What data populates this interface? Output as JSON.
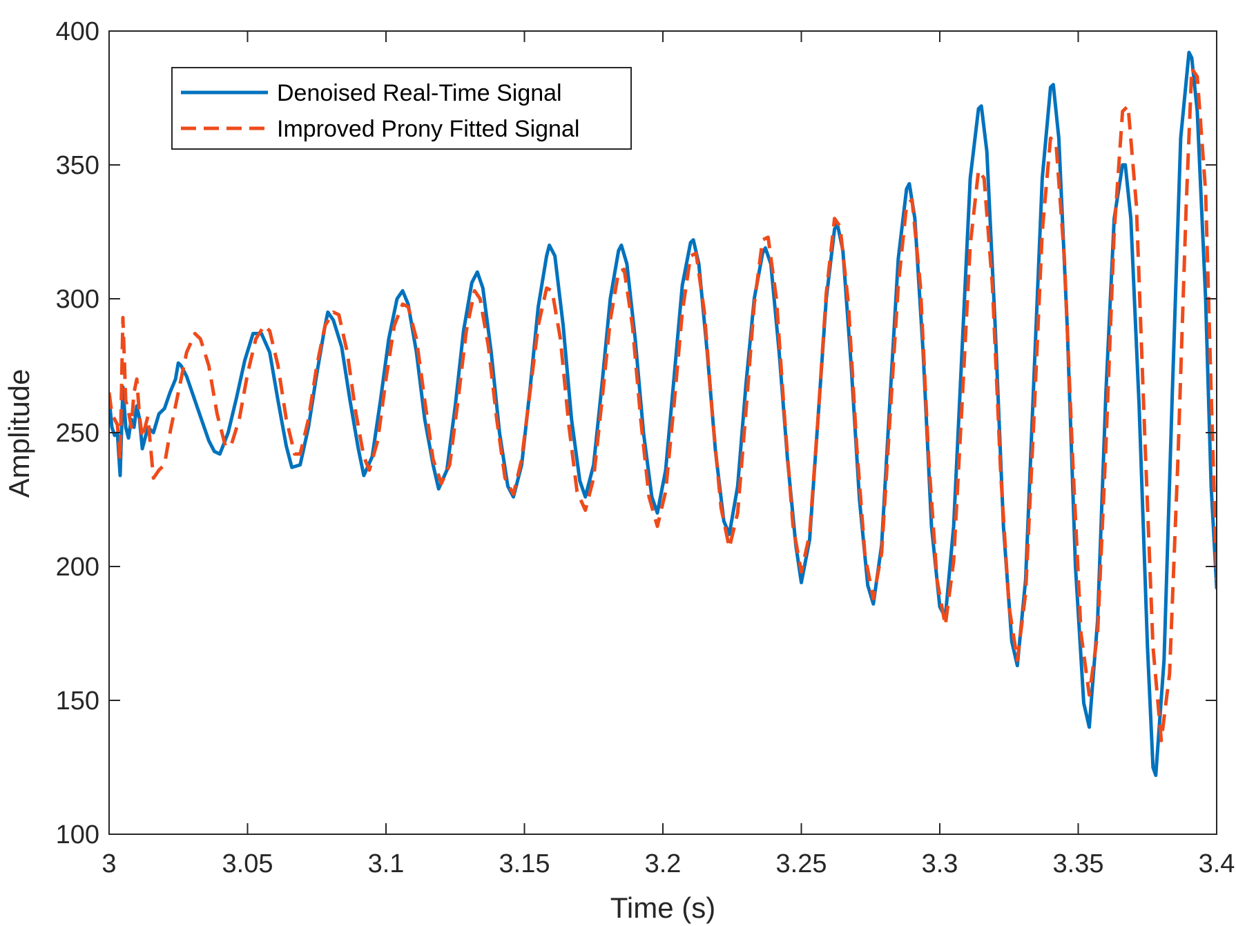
{
  "chart_data": {
    "type": "line",
    "title": "",
    "xlabel": "Time (s)",
    "ylabel": "Amplitude",
    "xlim": [
      3,
      3.4
    ],
    "ylim": [
      100,
      400
    ],
    "xticks": [
      3,
      3.05,
      3.1,
      3.15,
      3.2,
      3.25,
      3.3,
      3.35,
      3.4
    ],
    "xtick_labels": [
      "3",
      "3.05",
      "3.1",
      "3.15",
      "3.2",
      "3.25",
      "3.3",
      "3.35",
      "3.4"
    ],
    "yticks": [
      100,
      150,
      200,
      250,
      300,
      350,
      400
    ],
    "ytick_labels": [
      "100",
      "150",
      "200",
      "250",
      "300",
      "350",
      "400"
    ],
    "grid": false,
    "legend_position": "top-left",
    "series": [
      {
        "name": "Denoised Real-Time Signal",
        "color": "#0072BD",
        "style": "solid",
        "points": [
          [
            3.0,
            263
          ],
          [
            3.001,
            252
          ],
          [
            3.002,
            249
          ],
          [
            3.003,
            250
          ],
          [
            3.004,
            234
          ],
          [
            3.005,
            267
          ],
          [
            3.006,
            252
          ],
          [
            3.007,
            248
          ],
          [
            3.008,
            255
          ],
          [
            3.009,
            252
          ],
          [
            3.01,
            260
          ],
          [
            3.011,
            255
          ],
          [
            3.012,
            244
          ],
          [
            3.014,
            252
          ],
          [
            3.016,
            250
          ],
          [
            3.018,
            257
          ],
          [
            3.02,
            259
          ],
          [
            3.022,
            265
          ],
          [
            3.024,
            270
          ],
          [
            3.025,
            276
          ],
          [
            3.026,
            275
          ],
          [
            3.028,
            271
          ],
          [
            3.03,
            265
          ],
          [
            3.033,
            256
          ],
          [
            3.036,
            247
          ],
          [
            3.038,
            243
          ],
          [
            3.04,
            242
          ],
          [
            3.043,
            250
          ],
          [
            3.046,
            263
          ],
          [
            3.049,
            277
          ],
          [
            3.052,
            287
          ],
          [
            3.055,
            287
          ],
          [
            3.058,
            280
          ],
          [
            3.061,
            262
          ],
          [
            3.064,
            245
          ],
          [
            3.066,
            237
          ],
          [
            3.069,
            238
          ],
          [
            3.072,
            252
          ],
          [
            3.075,
            272
          ],
          [
            3.078,
            290
          ],
          [
            3.079,
            295
          ],
          [
            3.081,
            292
          ],
          [
            3.084,
            282
          ],
          [
            3.087,
            262
          ],
          [
            3.09,
            244
          ],
          [
            3.092,
            234
          ],
          [
            3.095,
            241
          ],
          [
            3.098,
            262
          ],
          [
            3.101,
            285
          ],
          [
            3.104,
            300
          ],
          [
            3.106,
            303
          ],
          [
            3.108,
            298
          ],
          [
            3.111,
            280
          ],
          [
            3.114,
            255
          ],
          [
            3.117,
            238
          ],
          [
            3.119,
            229
          ],
          [
            3.122,
            236
          ],
          [
            3.125,
            260
          ],
          [
            3.128,
            288
          ],
          [
            3.131,
            306
          ],
          [
            3.133,
            310
          ],
          [
            3.135,
            304
          ],
          [
            3.138,
            280
          ],
          [
            3.141,
            250
          ],
          [
            3.144,
            230
          ],
          [
            3.146,
            226
          ],
          [
            3.149,
            238
          ],
          [
            3.152,
            266
          ],
          [
            3.155,
            297
          ],
          [
            3.158,
            316
          ],
          [
            3.159,
            320
          ],
          [
            3.161,
            316
          ],
          [
            3.164,
            290
          ],
          [
            3.167,
            255
          ],
          [
            3.17,
            232
          ],
          [
            3.172,
            226
          ],
          [
            3.175,
            238
          ],
          [
            3.178,
            268
          ],
          [
            3.181,
            300
          ],
          [
            3.184,
            318
          ],
          [
            3.185,
            320
          ],
          [
            3.187,
            313
          ],
          [
            3.19,
            285
          ],
          [
            3.193,
            250
          ],
          [
            3.196,
            226
          ],
          [
            3.198,
            220
          ],
          [
            3.201,
            236
          ],
          [
            3.204,
            270
          ],
          [
            3.207,
            305
          ],
          [
            3.21,
            321
          ],
          [
            3.211,
            322
          ],
          [
            3.213,
            313
          ],
          [
            3.216,
            280
          ],
          [
            3.219,
            243
          ],
          [
            3.222,
            217
          ],
          [
            3.224,
            212
          ],
          [
            3.227,
            230
          ],
          [
            3.23,
            268
          ],
          [
            3.233,
            300
          ],
          [
            3.236,
            317
          ],
          [
            3.237,
            319
          ],
          [
            3.239,
            313
          ],
          [
            3.242,
            280
          ],
          [
            3.245,
            240
          ],
          [
            3.248,
            208
          ],
          [
            3.25,
            194
          ],
          [
            3.253,
            210
          ],
          [
            3.256,
            255
          ],
          [
            3.259,
            300
          ],
          [
            3.262,
            326
          ],
          [
            3.263,
            328
          ],
          [
            3.265,
            318
          ],
          [
            3.268,
            275
          ],
          [
            3.271,
            225
          ],
          [
            3.274,
            193
          ],
          [
            3.276,
            186
          ],
          [
            3.279,
            208
          ],
          [
            3.282,
            262
          ],
          [
            3.285,
            315
          ],
          [
            3.288,
            341
          ],
          [
            3.289,
            343
          ],
          [
            3.291,
            330
          ],
          [
            3.294,
            280
          ],
          [
            3.297,
            215
          ],
          [
            3.3,
            185
          ],
          [
            3.302,
            181
          ],
          [
            3.305,
            215
          ],
          [
            3.308,
            280
          ],
          [
            3.311,
            345
          ],
          [
            3.314,
            371
          ],
          [
            3.315,
            372
          ],
          [
            3.317,
            355
          ],
          [
            3.32,
            290
          ],
          [
            3.323,
            215
          ],
          [
            3.326,
            172
          ],
          [
            3.328,
            163
          ],
          [
            3.331,
            195
          ],
          [
            3.334,
            270
          ],
          [
            3.337,
            345
          ],
          [
            3.34,
            379
          ],
          [
            3.341,
            380
          ],
          [
            3.343,
            360
          ],
          [
            3.346,
            290
          ],
          [
            3.349,
            200
          ],
          [
            3.352,
            149
          ],
          [
            3.354,
            140
          ],
          [
            3.357,
            180
          ],
          [
            3.36,
            265
          ],
          [
            3.363,
            330
          ],
          [
            3.366,
            350
          ],
          [
            3.367,
            350
          ],
          [
            3.369,
            330
          ],
          [
            3.372,
            260
          ],
          [
            3.375,
            170
          ],
          [
            3.377,
            125
          ],
          [
            3.378,
            122
          ],
          [
            3.381,
            165
          ],
          [
            3.384,
            265
          ],
          [
            3.387,
            360
          ],
          [
            3.39,
            392
          ],
          [
            3.391,
            390
          ],
          [
            3.393,
            370
          ],
          [
            3.396,
            300
          ],
          [
            3.398,
            230
          ],
          [
            3.4,
            192
          ]
        ]
      },
      {
        "name": "Improved Prony Fitted Signal",
        "color": "#EE4B1B",
        "style": "dashed",
        "points": [
          [
            3.0,
            265
          ],
          [
            3.001,
            257
          ],
          [
            3.002,
            255
          ],
          [
            3.003,
            253
          ],
          [
            3.004,
            240
          ],
          [
            3.005,
            293
          ],
          [
            3.006,
            262
          ],
          [
            3.007,
            258
          ],
          [
            3.008,
            252
          ],
          [
            3.009,
            265
          ],
          [
            3.01,
            270
          ],
          [
            3.011,
            256
          ],
          [
            3.012,
            248
          ],
          [
            3.014,
            256
          ],
          [
            3.016,
            233
          ],
          [
            3.018,
            236
          ],
          [
            3.02,
            238
          ],
          [
            3.022,
            250
          ],
          [
            3.025,
            265
          ],
          [
            3.028,
            280
          ],
          [
            3.031,
            287
          ],
          [
            3.033,
            285
          ],
          [
            3.036,
            275
          ],
          [
            3.039,
            257
          ],
          [
            3.042,
            245
          ],
          [
            3.044,
            245
          ],
          [
            3.047,
            255
          ],
          [
            3.05,
            272
          ],
          [
            3.053,
            285
          ],
          [
            3.056,
            290
          ],
          [
            3.058,
            288
          ],
          [
            3.061,
            275
          ],
          [
            3.064,
            255
          ],
          [
            3.067,
            242
          ],
          [
            3.069,
            242
          ],
          [
            3.072,
            255
          ],
          [
            3.075,
            275
          ],
          [
            3.078,
            290
          ],
          [
            3.081,
            295
          ],
          [
            3.083,
            294
          ],
          [
            3.086,
            280
          ],
          [
            3.089,
            258
          ],
          [
            3.092,
            241
          ],
          [
            3.094,
            236
          ],
          [
            3.097,
            247
          ],
          [
            3.1,
            270
          ],
          [
            3.103,
            290
          ],
          [
            3.106,
            298
          ],
          [
            3.108,
            297
          ],
          [
            3.111,
            285
          ],
          [
            3.114,
            262
          ],
          [
            3.117,
            240
          ],
          [
            3.12,
            231
          ],
          [
            3.123,
            238
          ],
          [
            3.126,
            262
          ],
          [
            3.129,
            288
          ],
          [
            3.132,
            303
          ],
          [
            3.134,
            300
          ],
          [
            3.137,
            282
          ],
          [
            3.14,
            255
          ],
          [
            3.143,
            233
          ],
          [
            3.146,
            227
          ],
          [
            3.149,
            240
          ],
          [
            3.152,
            265
          ],
          [
            3.155,
            290
          ],
          [
            3.158,
            304
          ],
          [
            3.16,
            303
          ],
          [
            3.163,
            285
          ],
          [
            3.166,
            253
          ],
          [
            3.169,
            228
          ],
          [
            3.172,
            221
          ],
          [
            3.175,
            233
          ],
          [
            3.178,
            262
          ],
          [
            3.181,
            292
          ],
          [
            3.184,
            310
          ],
          [
            3.186,
            311
          ],
          [
            3.189,
            290
          ],
          [
            3.192,
            255
          ],
          [
            3.195,
            226
          ],
          [
            3.198,
            215
          ],
          [
            3.201,
            228
          ],
          [
            3.204,
            260
          ],
          [
            3.207,
            295
          ],
          [
            3.21,
            316
          ],
          [
            3.212,
            317
          ],
          [
            3.215,
            295
          ],
          [
            3.218,
            255
          ],
          [
            3.221,
            222
          ],
          [
            3.224,
            207
          ],
          [
            3.227,
            220
          ],
          [
            3.23,
            258
          ],
          [
            3.233,
            298
          ],
          [
            3.236,
            322
          ],
          [
            3.238,
            323
          ],
          [
            3.241,
            300
          ],
          [
            3.244,
            255
          ],
          [
            3.247,
            215
          ],
          [
            3.25,
            198
          ],
          [
            3.253,
            212
          ],
          [
            3.256,
            255
          ],
          [
            3.259,
            302
          ],
          [
            3.262,
            330
          ],
          [
            3.264,
            327
          ],
          [
            3.267,
            298
          ],
          [
            3.27,
            245
          ],
          [
            3.273,
            204
          ],
          [
            3.276,
            188
          ],
          [
            3.279,
            205
          ],
          [
            3.282,
            255
          ],
          [
            3.285,
            305
          ],
          [
            3.288,
            335
          ],
          [
            3.29,
            337
          ],
          [
            3.293,
            305
          ],
          [
            3.296,
            240
          ],
          [
            3.299,
            195
          ],
          [
            3.302,
            178
          ],
          [
            3.305,
            202
          ],
          [
            3.308,
            260
          ],
          [
            3.311,
            320
          ],
          [
            3.314,
            348
          ],
          [
            3.316,
            345
          ],
          [
            3.319,
            305
          ],
          [
            3.322,
            235
          ],
          [
            3.325,
            185
          ],
          [
            3.328,
            165
          ],
          [
            3.331,
            190
          ],
          [
            3.334,
            255
          ],
          [
            3.337,
            325
          ],
          [
            3.34,
            360
          ],
          [
            3.342,
            358
          ],
          [
            3.345,
            315
          ],
          [
            3.348,
            240
          ],
          [
            3.351,
            175
          ],
          [
            3.354,
            152
          ],
          [
            3.357,
            175
          ],
          [
            3.36,
            245
          ],
          [
            3.363,
            325
          ],
          [
            3.366,
            370
          ],
          [
            3.368,
            372
          ],
          [
            3.371,
            335
          ],
          [
            3.374,
            250
          ],
          [
            3.377,
            170
          ],
          [
            3.38,
            135
          ],
          [
            3.383,
            160
          ],
          [
            3.386,
            240
          ],
          [
            3.389,
            335
          ],
          [
            3.391,
            386
          ],
          [
            3.393,
            383
          ],
          [
            3.396,
            340
          ],
          [
            3.398,
            265
          ],
          [
            3.4,
            195
          ]
        ]
      }
    ]
  }
}
